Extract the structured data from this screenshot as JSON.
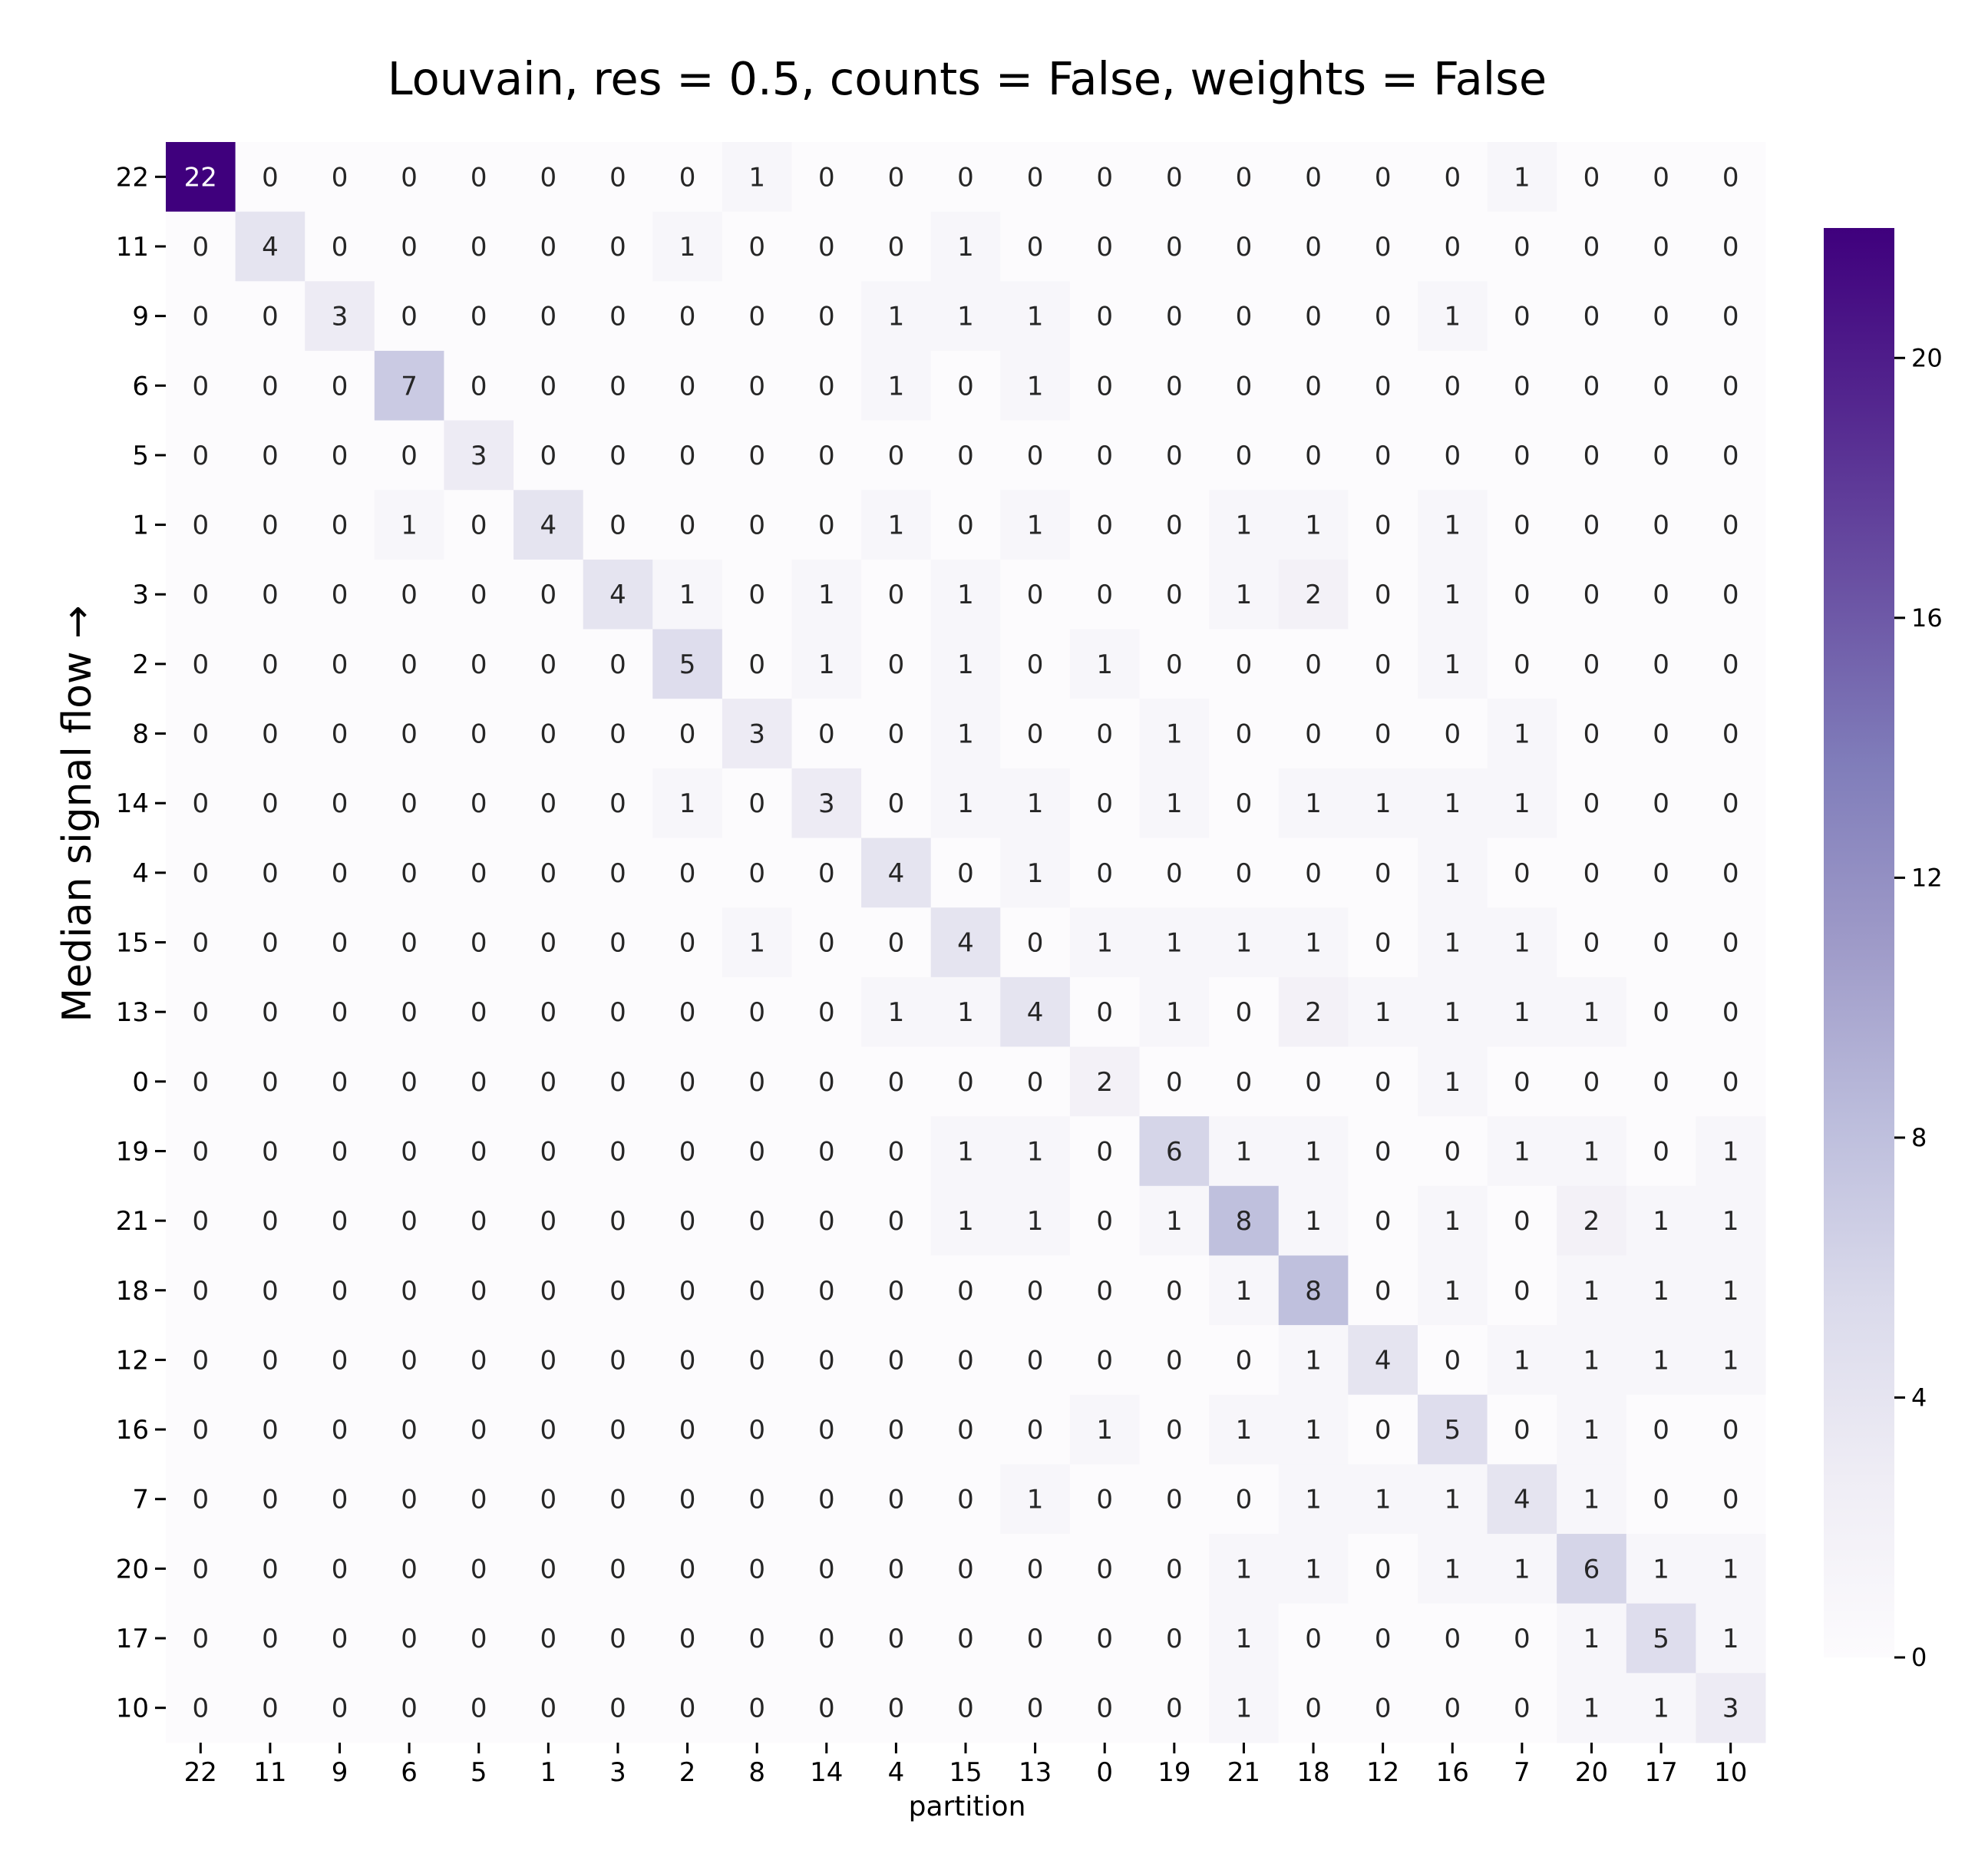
{
  "chart_data": {
    "type": "heatmap",
    "title": "Louvain, res = 0.5, counts = False, weights = False",
    "xlabel": "partition",
    "ylabel": "Median signal flow →",
    "x_categories": [
      "22",
      "11",
      "9",
      "6",
      "5",
      "1",
      "3",
      "2",
      "8",
      "14",
      "4",
      "15",
      "13",
      "0",
      "19",
      "21",
      "18",
      "12",
      "16",
      "7",
      "20",
      "17",
      "10"
    ],
    "y_categories": [
      "22",
      "11",
      "9",
      "6",
      "5",
      "1",
      "3",
      "2",
      "8",
      "14",
      "4",
      "15",
      "13",
      "0",
      "19",
      "21",
      "18",
      "12",
      "16",
      "7",
      "20",
      "17",
      "10"
    ],
    "values": [
      [
        22,
        0,
        0,
        0,
        0,
        0,
        0,
        0,
        1,
        0,
        0,
        0,
        0,
        0,
        0,
        0,
        0,
        0,
        0,
        1,
        0,
        0,
        0
      ],
      [
        0,
        4,
        0,
        0,
        0,
        0,
        0,
        1,
        0,
        0,
        0,
        1,
        0,
        0,
        0,
        0,
        0,
        0,
        0,
        0,
        0,
        0,
        0
      ],
      [
        0,
        0,
        3,
        0,
        0,
        0,
        0,
        0,
        0,
        0,
        1,
        1,
        1,
        0,
        0,
        0,
        0,
        0,
        1,
        0,
        0,
        0,
        0
      ],
      [
        0,
        0,
        0,
        7,
        0,
        0,
        0,
        0,
        0,
        0,
        1,
        0,
        1,
        0,
        0,
        0,
        0,
        0,
        0,
        0,
        0,
        0,
        0
      ],
      [
        0,
        0,
        0,
        0,
        3,
        0,
        0,
        0,
        0,
        0,
        0,
        0,
        0,
        0,
        0,
        0,
        0,
        0,
        0,
        0,
        0,
        0,
        0
      ],
      [
        0,
        0,
        0,
        1,
        0,
        4,
        0,
        0,
        0,
        0,
        1,
        0,
        1,
        0,
        0,
        1,
        1,
        0,
        1,
        0,
        0,
        0,
        0
      ],
      [
        0,
        0,
        0,
        0,
        0,
        0,
        4,
        1,
        0,
        1,
        0,
        1,
        0,
        0,
        0,
        1,
        2,
        0,
        1,
        0,
        0,
        0,
        0
      ],
      [
        0,
        0,
        0,
        0,
        0,
        0,
        0,
        5,
        0,
        1,
        0,
        1,
        0,
        1,
        0,
        0,
        0,
        0,
        1,
        0,
        0,
        0,
        0
      ],
      [
        0,
        0,
        0,
        0,
        0,
        0,
        0,
        0,
        3,
        0,
        0,
        1,
        0,
        0,
        1,
        0,
        0,
        0,
        0,
        1,
        0,
        0,
        0
      ],
      [
        0,
        0,
        0,
        0,
        0,
        0,
        0,
        1,
        0,
        3,
        0,
        1,
        1,
        0,
        1,
        0,
        1,
        1,
        1,
        1,
        0,
        0,
        0
      ],
      [
        0,
        0,
        0,
        0,
        0,
        0,
        0,
        0,
        0,
        0,
        4,
        0,
        1,
        0,
        0,
        0,
        0,
        0,
        1,
        0,
        0,
        0,
        0
      ],
      [
        0,
        0,
        0,
        0,
        0,
        0,
        0,
        0,
        1,
        0,
        0,
        4,
        0,
        1,
        1,
        1,
        1,
        0,
        1,
        1,
        0,
        0,
        0
      ],
      [
        0,
        0,
        0,
        0,
        0,
        0,
        0,
        0,
        0,
        0,
        1,
        1,
        4,
        0,
        1,
        0,
        2,
        1,
        1,
        1,
        1,
        0,
        0
      ],
      [
        0,
        0,
        0,
        0,
        0,
        0,
        0,
        0,
        0,
        0,
        0,
        0,
        0,
        2,
        0,
        0,
        0,
        0,
        1,
        0,
        0,
        0,
        0
      ],
      [
        0,
        0,
        0,
        0,
        0,
        0,
        0,
        0,
        0,
        0,
        0,
        1,
        1,
        0,
        6,
        1,
        1,
        0,
        0,
        1,
        1,
        0,
        1
      ],
      [
        0,
        0,
        0,
        0,
        0,
        0,
        0,
        0,
        0,
        0,
        0,
        1,
        1,
        0,
        1,
        8,
        1,
        0,
        1,
        0,
        2,
        1,
        1
      ],
      [
        0,
        0,
        0,
        0,
        0,
        0,
        0,
        0,
        0,
        0,
        0,
        0,
        0,
        0,
        0,
        1,
        8,
        0,
        1,
        0,
        1,
        1,
        1
      ],
      [
        0,
        0,
        0,
        0,
        0,
        0,
        0,
        0,
        0,
        0,
        0,
        0,
        0,
        0,
        0,
        0,
        1,
        4,
        0,
        1,
        1,
        1,
        1
      ],
      [
        0,
        0,
        0,
        0,
        0,
        0,
        0,
        0,
        0,
        0,
        0,
        0,
        0,
        1,
        0,
        1,
        1,
        0,
        5,
        0,
        1,
        0,
        0
      ],
      [
        0,
        0,
        0,
        0,
        0,
        0,
        0,
        0,
        0,
        0,
        0,
        0,
        1,
        0,
        0,
        0,
        1,
        1,
        1,
        4,
        1,
        0,
        0
      ],
      [
        0,
        0,
        0,
        0,
        0,
        0,
        0,
        0,
        0,
        0,
        0,
        0,
        0,
        0,
        0,
        1,
        1,
        0,
        1,
        1,
        6,
        1,
        1
      ],
      [
        0,
        0,
        0,
        0,
        0,
        0,
        0,
        0,
        0,
        0,
        0,
        0,
        0,
        0,
        0,
        1,
        0,
        0,
        0,
        0,
        1,
        5,
        1
      ],
      [
        0,
        0,
        0,
        0,
        0,
        0,
        0,
        0,
        0,
        0,
        0,
        0,
        0,
        0,
        0,
        1,
        0,
        0,
        0,
        0,
        1,
        1,
        3
      ]
    ],
    "colorbar": {
      "min": 0,
      "max": 22,
      "ticks": [
        0,
        4,
        8,
        12,
        16,
        20
      ]
    },
    "colors": {
      "low": "#fcfbfd",
      "high": "#3f007d",
      "cell_text_dark": "#262626",
      "cell_text_light": "#ffffff"
    },
    "colormap": "Purples"
  }
}
